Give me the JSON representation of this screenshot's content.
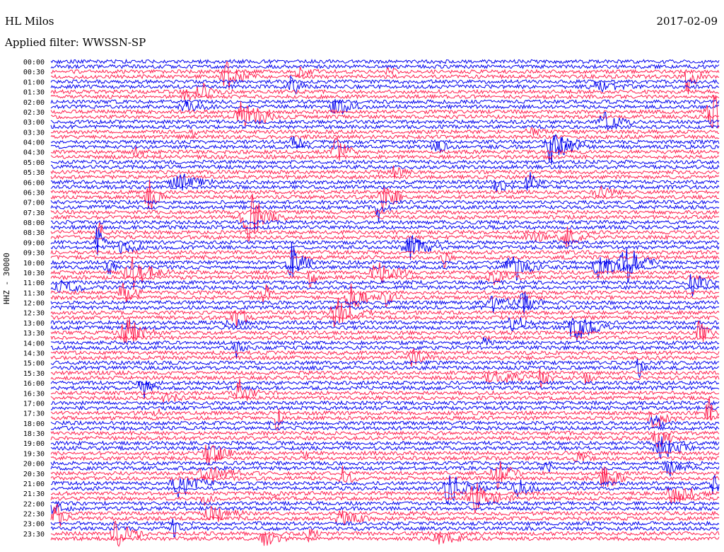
{
  "header": {
    "station": "HL Milos",
    "filter": "Applied filter: WWSSN-SP",
    "date": "2017-02-09",
    "channel": "HHZ - 30000"
  },
  "colors": {
    "trace_a": "#0000ee",
    "trace_b": "#ff2050",
    "background": "#ffffff"
  },
  "chart_data": {
    "type": "line",
    "description_type": "helicorder",
    "title": "HL Milos",
    "subtitle": "Applied filter: WWSSN-SP",
    "date": "2017-02-09",
    "ylabel": "HHZ - 30000",
    "row_interval_minutes": 15,
    "row_labels": [
      "00:00",
      "00:30",
      "01:00",
      "01:30",
      "02:00",
      "02:30",
      "03:00",
      "03:30",
      "04:00",
      "04:30",
      "05:00",
      "05:30",
      "06:00",
      "06:30",
      "07:00",
      "07:30",
      "08:00",
      "08:30",
      "09:00",
      "09:30",
      "10:00",
      "10:30",
      "11:00",
      "11:30",
      "12:00",
      "12:30",
      "13:00",
      "13:30",
      "14:00",
      "14:30",
      "15:00",
      "15:30",
      "16:00",
      "16:30",
      "17:00",
      "17:30",
      "18:00",
      "18:30",
      "19:00",
      "19:30",
      "20:00",
      "20:30",
      "21:00",
      "21:30",
      "22:00",
      "22:30",
      "23:00",
      "23:30"
    ],
    "series": [
      {
        "color": "#0000ee"
      },
      {
        "color": "#ff2050"
      }
    ]
  }
}
